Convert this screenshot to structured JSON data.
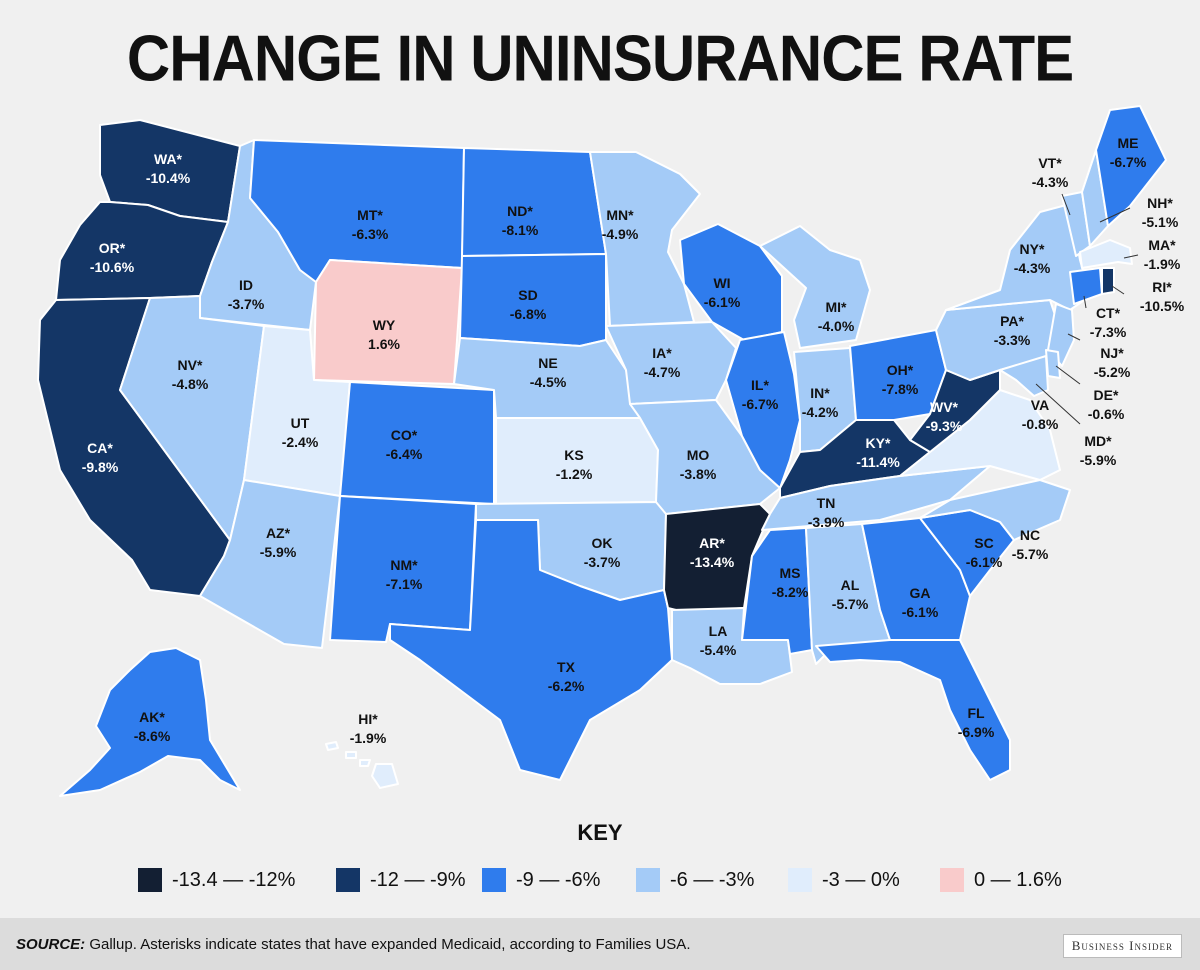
{
  "title": "CHANGE IN UNINSURANCE RATE",
  "key_title": "KEY",
  "colors": {
    "c1": "#131f33",
    "c2": "#143666",
    "c3": "#2f7ced",
    "c4": "#a4cbf7",
    "c5": "#e0edfc",
    "c6": "#f9cbcb"
  },
  "legend": [
    {
      "label": "-13.4 — -12%",
      "color": "#131f33"
    },
    {
      "label": "-12 — -9%",
      "color": "#143666"
    },
    {
      "label": "-9 — -6%",
      "color": "#2f7ced"
    },
    {
      "label": "-6 — -3%",
      "color": "#a4cbf7"
    },
    {
      "label": "-3 — 0%",
      "color": "#e0edfc"
    },
    {
      "label": "0 — 1.6%",
      "color": "#f9cbcb"
    }
  ],
  "states": {
    "WA": {
      "name": "WA*",
      "value": "-10.4%"
    },
    "OR": {
      "name": "OR*",
      "value": "-10.6%"
    },
    "CA": {
      "name": "CA*",
      "value": "-9.8%"
    },
    "ID": {
      "name": "ID",
      "value": "-3.7%"
    },
    "NV": {
      "name": "NV*",
      "value": "-4.8%"
    },
    "MT": {
      "name": "MT*",
      "value": "-6.3%"
    },
    "WY": {
      "name": "WY",
      "value": "1.6%"
    },
    "UT": {
      "name": "UT",
      "value": "-2.4%"
    },
    "AZ": {
      "name": "AZ*",
      "value": "-5.9%"
    },
    "CO": {
      "name": "CO*",
      "value": "-6.4%"
    },
    "NM": {
      "name": "NM*",
      "value": "-7.1%"
    },
    "ND": {
      "name": "ND*",
      "value": "-8.1%"
    },
    "SD": {
      "name": "SD",
      "value": "-6.8%"
    },
    "NE": {
      "name": "NE",
      "value": "-4.5%"
    },
    "KS": {
      "name": "KS",
      "value": "-1.2%"
    },
    "OK": {
      "name": "OK",
      "value": "-3.7%"
    },
    "TX": {
      "name": "TX",
      "value": "-6.2%"
    },
    "MN": {
      "name": "MN*",
      "value": "-4.9%"
    },
    "IA": {
      "name": "IA*",
      "value": "-4.7%"
    },
    "MO": {
      "name": "MO",
      "value": "-3.8%"
    },
    "AR": {
      "name": "AR*",
      "value": "-13.4%"
    },
    "LA": {
      "name": "LA",
      "value": "-5.4%"
    },
    "WI": {
      "name": "WI",
      "value": "-6.1%"
    },
    "IL": {
      "name": "IL*",
      "value": "-6.7%"
    },
    "MS": {
      "name": "MS",
      "value": "-8.2%"
    },
    "MI": {
      "name": "MI*",
      "value": "-4.0%"
    },
    "IN": {
      "name": "IN*",
      "value": "-4.2%"
    },
    "OH": {
      "name": "OH*",
      "value": "-7.8%"
    },
    "KY": {
      "name": "KY*",
      "value": "-11.4%"
    },
    "TN": {
      "name": "TN",
      "value": "-3.9%"
    },
    "AL": {
      "name": "AL",
      "value": "-5.7%"
    },
    "GA": {
      "name": "GA",
      "value": "-6.1%"
    },
    "FL": {
      "name": "FL",
      "value": "-6.9%"
    },
    "SC": {
      "name": "SC",
      "value": "-6.1%"
    },
    "NC": {
      "name": "NC",
      "value": "-5.7%"
    },
    "VA": {
      "name": "VA",
      "value": "-0.8%"
    },
    "WV": {
      "name": "WV*",
      "value": "-9.3%"
    },
    "PA": {
      "name": "PA*",
      "value": "-3.3%"
    },
    "NY": {
      "name": "NY*",
      "value": "-4.3%"
    },
    "VT": {
      "name": "VT*",
      "value": "-4.3%"
    },
    "NH": {
      "name": "NH*",
      "value": "-5.1%"
    },
    "ME": {
      "name": "ME",
      "value": "-6.7%"
    },
    "MA": {
      "name": "MA*",
      "value": "-1.9%"
    },
    "RI": {
      "name": "RI*",
      "value": "-10.5%"
    },
    "CT": {
      "name": "CT*",
      "value": "-7.3%"
    },
    "NJ": {
      "name": "NJ*",
      "value": "-5.2%"
    },
    "DE": {
      "name": "DE*",
      "value": "-0.6%"
    },
    "MD": {
      "name": "MD*",
      "value": "-5.9%"
    },
    "AK": {
      "name": "AK*",
      "value": "-8.6%"
    },
    "HI": {
      "name": "HI*",
      "value": "-1.9%"
    }
  },
  "footer": {
    "source_label": "SOURCE:",
    "source_text": " Gallup. Asterisks indicate states that have expanded Medicaid, according to Families USA.",
    "brand": "Business Insider"
  }
}
